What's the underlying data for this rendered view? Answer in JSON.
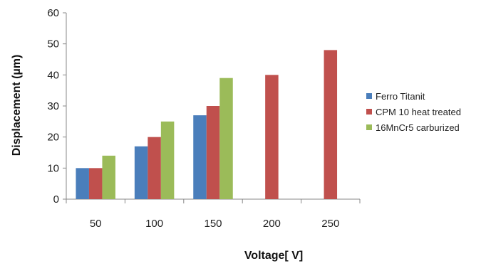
{
  "chart_data": {
    "type": "bar",
    "title": "",
    "xlabel": "Voltage[ V]",
    "ylabel": "Displacement  (µm)",
    "categories": [
      "50",
      "100",
      "150",
      "200",
      "250"
    ],
    "ylim": [
      0,
      60
    ],
    "yticks": [
      0,
      10,
      20,
      30,
      40,
      50,
      60
    ],
    "grid": false,
    "legend_position": "right",
    "series": [
      {
        "name": "Ferro Titanit",
        "color": "#4a7ebb",
        "values": [
          10,
          17,
          27,
          null,
          null
        ]
      },
      {
        "name": "CPM 10 heat treated",
        "color": "#c0504d",
        "values": [
          10,
          20,
          30,
          40,
          48
        ]
      },
      {
        "name": "16MnCr5 carburized",
        "color": "#9bbb59",
        "values": [
          14,
          25,
          39,
          null,
          null
        ]
      }
    ]
  }
}
